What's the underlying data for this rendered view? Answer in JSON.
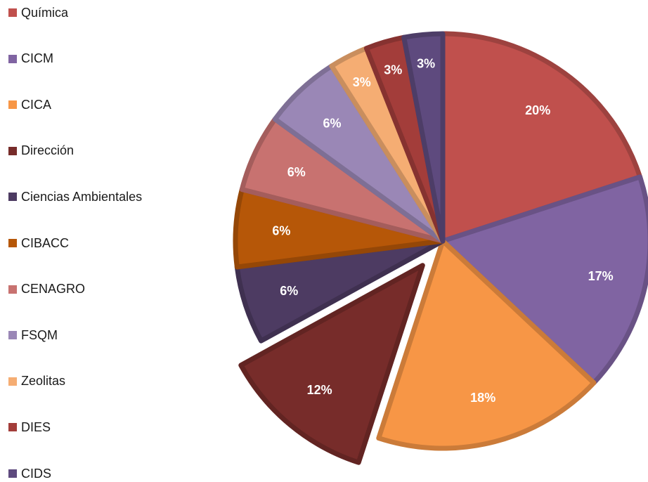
{
  "chart_data": {
    "type": "pie",
    "categories": [
      "Química",
      "CICM",
      "CICA",
      "Dirección",
      "Ciencias Ambientales",
      "CIBACC",
      "CENAGRO",
      "FSQM",
      "Zeolitas",
      "DIES",
      "CIDS"
    ],
    "values": [
      20,
      17,
      18,
      12,
      6,
      6,
      6,
      6,
      3,
      3,
      3
    ],
    "data_labels": [
      "20%",
      "17%",
      "18%",
      "12%",
      "6%",
      "6%",
      "6%",
      "6%",
      "3%",
      "3%",
      "3%"
    ],
    "unit": "%",
    "colors": [
      "#c0504d",
      "#8064a2",
      "#f79646",
      "#772c2a",
      "#4d3b62",
      "#b65708",
      "#c87270",
      "#9a87b6",
      "#f5ad73",
      "#a33d3a",
      "#5e4a7e"
    ],
    "exploded": [
      "Dirección"
    ],
    "slice_order": "clockwise from top",
    "title": "",
    "legend_position": "left"
  }
}
